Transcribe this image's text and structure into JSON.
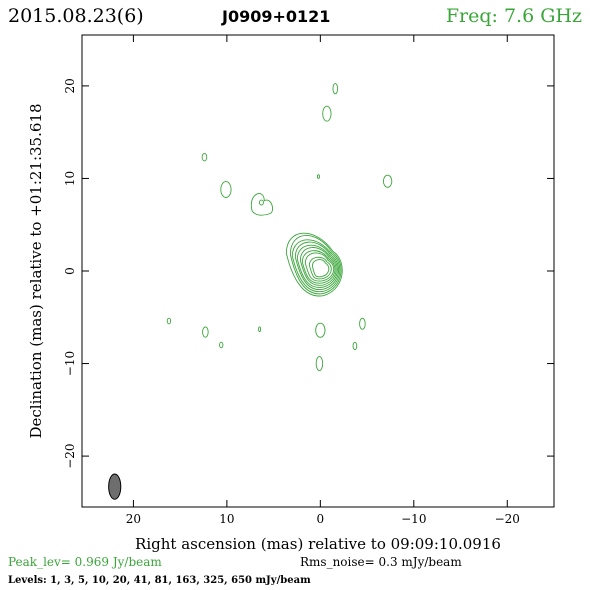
{
  "header": {
    "date": "2015.08.23(6)",
    "source": "J0909+0121",
    "freq": "Freq: 7.6 GHz"
  },
  "footer": {
    "peak": "Peak_lev=  0.969 Jy/beam",
    "rms": "Rms_noise=  0.3 mJy/beam",
    "levels": "Levels:   1,   3,   5,  10,  20,  41,  81, 163, 325, 650 mJy/beam"
  },
  "colors": {
    "contour": "#3aa63a",
    "beam": "#6e6e6e",
    "text": "#000000"
  },
  "chart_data": {
    "type": "contour",
    "xlabel": "Right ascension (mas) relative to 09:09:10.0916",
    "ylabel": "Declination (mas) relative to +01:21:35.618",
    "xlim": [
      25.5,
      -25
    ],
    "ylim": [
      -25.5,
      25.5
    ],
    "xticks": [
      20,
      10,
      0,
      -10,
      -20
    ],
    "yticks": [
      20,
      10,
      0,
      -10,
      -20
    ],
    "xtick_labels": [
      "20",
      "10",
      "0",
      "−10",
      "−20"
    ],
    "ytick_labels": [
      "20",
      "10",
      "0",
      "−10",
      "−20"
    ],
    "levels_mJy_per_beam": [
      1,
      3,
      5,
      10,
      20,
      41,
      81,
      163,
      325,
      650
    ],
    "core": {
      "x": 0,
      "y": 0.3
    },
    "beam": {
      "x": 22,
      "y": -23.3,
      "major_mas": 2.7,
      "minor_mas": 1.3
    },
    "blobs": [
      {
        "x": -1.6,
        "y": 19.7,
        "rx": 0.25,
        "ry": 0.55
      },
      {
        "x": -0.7,
        "y": 17.0,
        "rx": 0.45,
        "ry": 0.8
      },
      {
        "x": 12.4,
        "y": 12.3,
        "rx": 0.25,
        "ry": 0.4
      },
      {
        "x": 0.2,
        "y": 10.2,
        "rx": 0.08,
        "ry": 0.2
      },
      {
        "x": 10.1,
        "y": 8.8,
        "rx": 0.55,
        "ry": 0.85
      },
      {
        "x": -7.2,
        "y": 9.7,
        "rx": 0.45,
        "ry": 0.65
      },
      {
        "x": 16.2,
        "y": -5.4,
        "rx": 0.18,
        "ry": 0.3
      },
      {
        "x": 12.3,
        "y": -6.6,
        "rx": 0.3,
        "ry": 0.55
      },
      {
        "x": 6.5,
        "y": -6.3,
        "rx": 0.1,
        "ry": 0.25
      },
      {
        "x": 10.6,
        "y": -8.0,
        "rx": 0.18,
        "ry": 0.3
      },
      {
        "x": 0.0,
        "y": -6.4,
        "rx": 0.5,
        "ry": 0.75
      },
      {
        "x": -4.5,
        "y": -5.7,
        "rx": 0.3,
        "ry": 0.6
      },
      {
        "x": -3.7,
        "y": -8.1,
        "rx": 0.2,
        "ry": 0.4
      },
      {
        "x": 0.1,
        "y": -10.0,
        "rx": 0.35,
        "ry": 0.75
      }
    ]
  }
}
